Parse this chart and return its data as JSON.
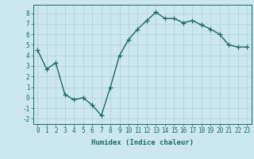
{
  "x": [
    0,
    1,
    2,
    3,
    4,
    5,
    6,
    7,
    8,
    9,
    10,
    11,
    12,
    13,
    14,
    15,
    16,
    17,
    18,
    19,
    20,
    21,
    22,
    23
  ],
  "y": [
    4.5,
    2.7,
    3.3,
    0.3,
    -0.2,
    0.0,
    -0.7,
    -1.7,
    1.0,
    4.0,
    5.5,
    6.5,
    7.3,
    8.1,
    7.5,
    7.5,
    7.1,
    7.3,
    6.9,
    6.5,
    6.0,
    5.0,
    4.8,
    4.8
  ],
  "line_color": "#1a6b5a",
  "marker": "+",
  "markersize": 4,
  "linewidth": 1.0,
  "bg_color": "#cce8ee",
  "grid_color": "#b0cfd8",
  "xlabel": "Humidex (Indice chaleur)",
  "xlim": [
    -0.5,
    23.5
  ],
  "ylim": [
    -2.5,
    8.8
  ],
  "yticks": [
    -2,
    -1,
    0,
    1,
    2,
    3,
    4,
    5,
    6,
    7,
    8
  ],
  "xticks": [
    0,
    1,
    2,
    3,
    4,
    5,
    6,
    7,
    8,
    9,
    10,
    11,
    12,
    13,
    14,
    15,
    16,
    17,
    18,
    19,
    20,
    21,
    22,
    23
  ],
  "tick_fontsize": 5.5,
  "xlabel_fontsize": 6.5,
  "markeredgewidth": 0.9
}
